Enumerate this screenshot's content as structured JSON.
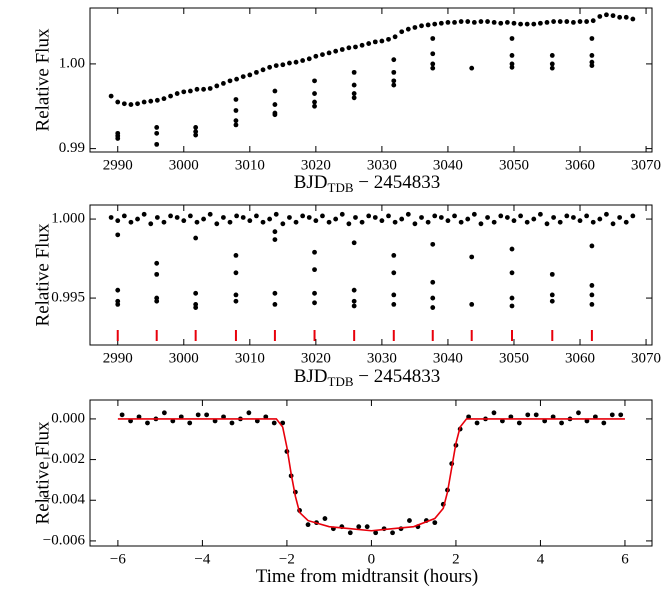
{
  "chart_data": [
    {
      "type": "scatter",
      "ylabel": "Relative Flux",
      "xlabel": [
        "BJD",
        "TDB",
        " − 2454833"
      ],
      "xlim": [
        2985.8,
        3070.9
      ],
      "ylim": [
        0.9896,
        1.0066
      ],
      "xticks": [
        2990,
        3000,
        3010,
        3020,
        3030,
        3040,
        3050,
        3060,
        3070
      ],
      "yticks": [
        0.99,
        {
          "value": 1,
          "label": "1.00"
        }
      ],
      "series": [
        {
          "type": "scatter",
          "color": "#000000",
          "x": [
            2989,
            2990,
            2991,
            2992,
            2993,
            2994,
            2995,
            2996,
            2997,
            2998,
            2999,
            3000,
            3001,
            3002,
            3003,
            3004,
            3005,
            3006,
            3007,
            3008,
            3009,
            3010,
            3011,
            3012,
            3013,
            3014,
            3015,
            3016,
            3017,
            3018,
            3019,
            3020,
            3021,
            3022,
            3023,
            3024,
            3025,
            3026,
            3027,
            3028,
            3029,
            3030,
            3031,
            3032,
            3033,
            3034,
            3035,
            3036,
            3037,
            3038,
            3039,
            3040,
            3041,
            3042,
            3043,
            3044,
            3045,
            3046,
            3047,
            3048,
            3049,
            3050,
            3051,
            3052,
            3053,
            3054,
            3055,
            3056,
            3057,
            3058,
            3059,
            3060,
            3061,
            3062,
            3063,
            3064,
            3065,
            3066,
            3067,
            3068,
            2990,
            2990,
            2990,
            2995.9,
            2995.9,
            2995.9,
            3001.8,
            3001.8,
            3001.8,
            3007.9,
            3007.9,
            3007.9,
            3007.9,
            3013.8,
            3013.8,
            3013.8,
            3013.8,
            3019.8,
            3019.8,
            3019.8,
            3019.8,
            3025.8,
            3025.8,
            3025.8,
            3025.8,
            3031.8,
            3031.8,
            3031.8,
            3031.8,
            3037.7,
            3037.7,
            3037.7,
            3037.7,
            3043.6,
            3049.7,
            3049.7,
            3049.7,
            3049.7,
            3055.8,
            3055.8,
            3055.8,
            3061.8,
            3061.8,
            3061.8,
            3061.8
          ],
          "values": [
            0.9962,
            0.9955,
            0.9953,
            0.9952,
            0.9953,
            0.9955,
            0.9956,
            0.9957,
            0.9959,
            0.9962,
            0.9965,
            0.9967,
            0.9968,
            0.997,
            0.997,
            0.9971,
            0.9974,
            0.9977,
            0.998,
            0.9982,
            0.9985,
            0.9987,
            0.999,
            0.9993,
            0.9996,
            0.9998,
            0.9999,
            1.0001,
            1.0002,
            1.0004,
            1.0006,
            1.0009,
            1.0011,
            1.0013,
            1.0015,
            1.0017,
            1.0019,
            1.002,
            1.0022,
            1.0024,
            1.0026,
            1.0027,
            1.0029,
            1.0032,
            1.0038,
            1.0041,
            1.0043,
            1.0045,
            1.0046,
            1.0047,
            1.0048,
            1.0049,
            1.0049,
            1.005,
            1.005,
            1.0049,
            1.005,
            1.005,
            1.0049,
            1.0048,
            1.0049,
            1.0048,
            1.0047,
            1.0047,
            1.0047,
            1.0048,
            1.0049,
            1.005,
            1.005,
            1.005,
            1.0049,
            1.005,
            1.005,
            1.0051,
            1.0056,
            1.0058,
            1.0057,
            1.0055,
            1.0055,
            1.0053,
            0.9918,
            0.9912,
            0.9915,
            0.9905,
            0.9918,
            0.9925,
            0.992,
            0.9916,
            0.9925,
            0.9928,
            0.9933,
            0.9945,
            0.9958,
            0.994,
            0.9942,
            0.9952,
            0.9968,
            0.995,
            0.9955,
            0.9965,
            0.998,
            0.996,
            0.9965,
            0.9975,
            0.999,
            0.9975,
            0.998,
            0.999,
            1.0005,
            0.9995,
            1,
            1.0012,
            1.003,
            0.9995,
            0.9996,
            1,
            1.001,
            1.003,
            0.9995,
            1,
            1.001,
            0.9998,
            1.0002,
            1.001,
            1.003
          ]
        }
      ]
    },
    {
      "type": "scatter",
      "ylabel": "Relative Flux",
      "xlabel": [
        "BJD",
        "TDB",
        " − 2454833"
      ],
      "xlim": [
        2985.8,
        3070.9
      ],
      "ylim": [
        0.99203,
        1.00089
      ],
      "xticks": [
        2990,
        3000,
        3010,
        3020,
        3030,
        3040,
        3050,
        3060,
        3070
      ],
      "yticks": [
        0.995,
        {
          "value": 1,
          "label": "1.000"
        }
      ],
      "transits": {
        "color": "#e8000b",
        "x": [
          2990,
          2995.9,
          3001.8,
          3007.9,
          3013.8,
          3019.8,
          3025.8,
          3031.8,
          3037.7,
          3043.6,
          3049.7,
          3055.8,
          3061.8
        ]
      },
      "series": [
        {
          "type": "scatter",
          "color": "#000000",
          "x": [
            2989,
            2990,
            2991,
            2992,
            2993,
            2994,
            2995,
            2996,
            2997,
            2998,
            2999,
            3000,
            3001,
            3002,
            3003,
            3004,
            3005,
            3006,
            3007,
            3008,
            3009,
            3010,
            3011,
            3012,
            3013,
            3014,
            3015,
            3016,
            3017,
            3018,
            3019,
            3020,
            3021,
            3022,
            3023,
            3024,
            3025,
            3026,
            3027,
            3028,
            3029,
            3030,
            3031,
            3032,
            3033,
            3034,
            3035,
            3036,
            3037,
            3038,
            3039,
            3040,
            3041,
            3042,
            3043,
            3044,
            3045,
            3046,
            3047,
            3048,
            3049,
            3050,
            3051,
            3052,
            3053,
            3054,
            3055,
            3056,
            3057,
            3058,
            3059,
            3060,
            3061,
            3062,
            3063,
            3064,
            3065,
            3066,
            3067,
            3068,
            2990,
            2990,
            2990,
            2990,
            2995.9,
            2995.9,
            2995.9,
            2995.9,
            3001.8,
            3001.8,
            3001.8,
            3001.8,
            3007.9,
            3007.9,
            3007.9,
            3007.9,
            3013.8,
            3013.8,
            3013.8,
            3013.8,
            3019.8,
            3019.8,
            3019.8,
            3019.8,
            3025.8,
            3025.8,
            3025.8,
            3025.8,
            3031.8,
            3031.8,
            3031.8,
            3031.8,
            3037.7,
            3037.7,
            3037.7,
            3037.7,
            3043.6,
            3043.6,
            3049.7,
            3049.7,
            3049.7,
            3049.7,
            3055.8,
            3055.8,
            3055.8,
            3061.8,
            3061.8,
            3061.8,
            3061.8
          ],
          "values": [
            1.0001,
            0.9999,
            1.0002,
            0.9998,
            1,
            1.0003,
            0.9997,
            1.0001,
            0.9998,
            1.0002,
            1.0001,
            0.9999,
            1.0002,
            0.9998,
            1,
            1.0003,
            0.9997,
            1.0001,
            0.9998,
            1.0002,
            1.0001,
            0.9999,
            1.0002,
            0.9998,
            1,
            1.0003,
            0.9997,
            1.0001,
            0.9998,
            1.0002,
            1.0001,
            0.9999,
            1.0002,
            0.9998,
            1,
            1.0003,
            0.9997,
            1.0001,
            0.9998,
            1.0002,
            1.0001,
            0.9999,
            1.0002,
            0.9998,
            1,
            1.0003,
            0.9997,
            1.0001,
            0.9998,
            1.0002,
            1.0001,
            0.9999,
            1.0002,
            0.9998,
            1,
            1.0003,
            0.9997,
            1.0001,
            0.9998,
            1.0002,
            1.0001,
            0.9999,
            1.0002,
            0.9998,
            1,
            1.0003,
            0.9997,
            1.0001,
            0.9998,
            1.0002,
            1.0001,
            0.9999,
            1.0002,
            0.9998,
            1,
            1.0003,
            0.9997,
            1.0001,
            0.9998,
            1.0002,
            0.999,
            0.9955,
            0.9948,
            0.9946,
            0.9972,
            0.9965,
            0.995,
            0.9948,
            0.9988,
            0.9953,
            0.9946,
            0.9944,
            0.9977,
            0.9966,
            0.9952,
            0.9948,
            0.9992,
            0.9987,
            0.9953,
            0.9946,
            0.9979,
            0.9968,
            0.9953,
            0.9947,
            0.9985,
            0.9955,
            0.9948,
            0.9945,
            0.9977,
            0.9966,
            0.9952,
            0.9946,
            0.9984,
            0.996,
            0.995,
            0.9944,
            0.9976,
            0.9946,
            0.9981,
            0.9966,
            0.995,
            0.9945,
            0.9965,
            0.9952,
            0.9948,
            0.9983,
            0.9958,
            0.9952,
            0.9946
          ]
        }
      ]
    },
    {
      "type": "scatter",
      "ylabel": "Relative Flux",
      "xlabel": [
        "Time from midtransit (hours)"
      ],
      "xlim": [
        -6.66,
        6.64
      ],
      "ylim": [
        -0.00625,
        0.00093
      ],
      "xticks": [
        {
          "value": -6,
          "label": "−6"
        },
        {
          "value": -4,
          "label": "−4"
        },
        {
          "value": -2,
          "label": "−2"
        },
        0,
        2,
        4,
        6
      ],
      "yticks": [
        {
          "value": -0.006,
          "label": "−0.006"
        },
        {
          "value": -0.004,
          "label": "−0.004"
        },
        {
          "value": -0.002,
          "label": "−0.002"
        },
        {
          "value": 0,
          "label": "0.000"
        }
      ],
      "series": [
        {
          "type": "scatter",
          "color": "#000000",
          "x": [
            -5.9,
            -5.7,
            -5.5,
            -5.3,
            -5.1,
            -4.9,
            -4.7,
            -4.5,
            -4.3,
            -4.1,
            -3.9,
            -3.7,
            -3.5,
            -3.3,
            -3.1,
            -2.9,
            -2.7,
            -2.5,
            -2.3,
            -2.1,
            -1.9,
            -1.7,
            -1.5,
            -1.3,
            -1.1,
            -0.9,
            -0.7,
            -0.5,
            -0.3,
            -0.1,
            0.1,
            0.3,
            0.5,
            0.7,
            0.9,
            1.1,
            1.3,
            1.5,
            1.7,
            1.9,
            2.1,
            2.3,
            2.5,
            2.7,
            2.9,
            3.1,
            3.3,
            3.5,
            3.7,
            3.9,
            4.1,
            4.3,
            4.5,
            4.7,
            4.9,
            5.1,
            5.3,
            5.5,
            5.7,
            5.9,
            -2,
            -1.8,
            1.8,
            2
          ],
          "values": [
            0.0002,
            -0.0001,
            0.0001,
            -0.0002,
            0,
            0.0003,
            -0.0001,
            0.0001,
            -0.0002,
            0.0002,
            0.0002,
            -0.0001,
            0.0001,
            -0.0002,
            0,
            0.0003,
            -0.0001,
            0.0001,
            -0.0002,
            -0.0002,
            -0.0028,
            -0.0045,
            -0.0052,
            -0.0051,
            -0.0049,
            -0.0054,
            -0.0053,
            -0.0056,
            -0.0053,
            -0.0053,
            -0.0056,
            -0.0054,
            -0.0056,
            -0.0054,
            -0.005,
            -0.0053,
            -0.005,
            -0.0051,
            -0.0042,
            -0.0022,
            -0.0005,
            0.0001,
            -0.0002,
            0,
            0.0003,
            -0.0001,
            0.0001,
            -0.0002,
            0.0002,
            0.0002,
            -0.0001,
            0.0001,
            -0.0002,
            0,
            0.0003,
            -0.0001,
            0.0001,
            -0.0002,
            0.0002,
            0.0002,
            -0.0016,
            -0.0036,
            -0.0035,
            -0.0013
          ]
        },
        {
          "type": "line",
          "color": "#e8000b",
          "x": [
            -6,
            -2.25,
            -2.1,
            -2,
            -1.9,
            -1.8,
            -1.7,
            -1.5,
            -1,
            -0.5,
            0,
            0.5,
            1,
            1.5,
            1.7,
            1.8,
            1.9,
            2,
            2.1,
            2.25,
            6
          ],
          "values": [
            0,
            0,
            -0.0004,
            -0.0014,
            -0.0027,
            -0.0038,
            -0.0046,
            -0.005,
            -0.0053,
            -0.0054,
            -0.0055,
            -0.0054,
            -0.0053,
            -0.0049,
            -0.0044,
            -0.0036,
            -0.0024,
            -0.0012,
            -0.0004,
            0,
            0
          ]
        }
      ]
    }
  ]
}
